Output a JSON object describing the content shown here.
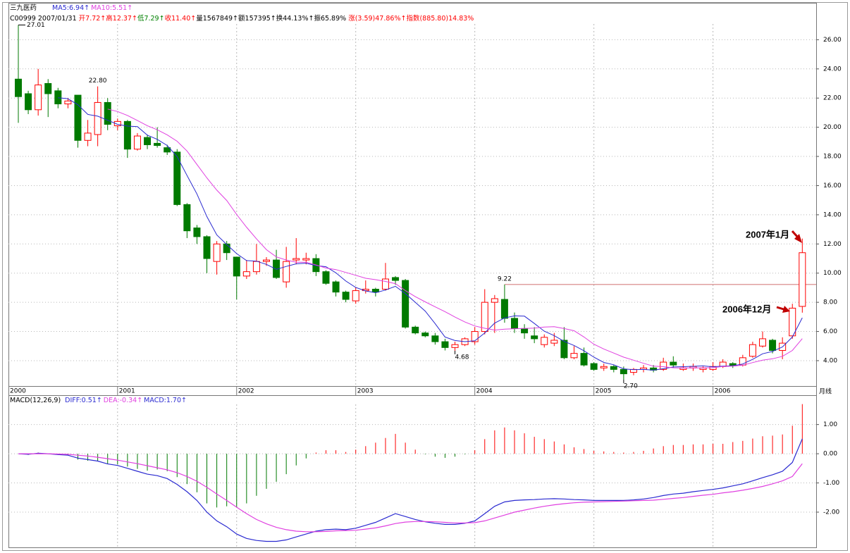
{
  "chart_data": [
    {
      "type": "candlestick",
      "title": "三九医药",
      "info": [
        {
          "text": "C00999 2007/01/31 ",
          "color": "#000000"
        },
        {
          "text": "开7.72↑",
          "color": "#ff0000"
        },
        {
          "text": "高12.37↑",
          "color": "#ff0000"
        },
        {
          "text": "低7.29↑",
          "color": "#008000"
        },
        {
          "text": "收11.40↑",
          "color": "#ff0000"
        },
        {
          "text": "量1567849↑",
          "color": "#000000"
        },
        {
          "text": "额157395↑",
          "color": "#000000"
        },
        {
          "text": "换44.13%↑",
          "color": "#000000"
        },
        {
          "text": "振65.89% ",
          "color": "#000000"
        },
        {
          "text": "涨(3.59)47.86%↑",
          "color": "#ff0000"
        },
        {
          "text": "指数(885.80)14.83%",
          "color": "#ff0000"
        }
      ],
      "categories": [
        "2000",
        null,
        null,
        null,
        null,
        null,
        null,
        null,
        null,
        null,
        "2001",
        null,
        null,
        null,
        null,
        null,
        null,
        null,
        null,
        null,
        null,
        null,
        "2002",
        null,
        null,
        null,
        null,
        null,
        null,
        null,
        null,
        null,
        null,
        null,
        "2003",
        null,
        null,
        null,
        null,
        null,
        null,
        null,
        null,
        null,
        null,
        null,
        "2004",
        null,
        null,
        null,
        null,
        null,
        null,
        null,
        null,
        null,
        null,
        null,
        "2005",
        null,
        null,
        null,
        null,
        null,
        null,
        null,
        null,
        null,
        null,
        null,
        "2006",
        null,
        null,
        null,
        null,
        null,
        null,
        null,
        null,
        null
      ],
      "open": [
        23.3,
        22.3,
        21.2,
        23.0,
        22.5,
        21.6,
        22.2,
        19.1,
        19.5,
        21.7,
        20.1,
        20.4,
        18.5,
        19.3,
        18.9,
        18.6,
        18.3,
        14.7,
        13.1,
        12.5,
        10.8,
        12.0,
        11.1,
        9.8,
        10.1,
        10.8,
        10.9,
        9.4,
        10.9,
        10.9,
        11.0,
        10.1,
        9.4,
        8.7,
        8.1,
        8.8,
        8.9,
        8.9,
        9.7,
        9.5,
        6.3,
        5.9,
        5.7,
        5.3,
        4.9,
        5.1,
        5.3,
        6.0,
        8.0,
        8.2,
        6.9,
        6.2,
        5.7,
        5.1,
        5.2,
        5.4,
        4.2,
        4.5,
        3.8,
        3.5,
        3.6,
        3.4,
        3.2,
        3.4,
        3.5,
        3.4,
        3.9,
        3.4,
        3.5,
        3.4,
        3.4,
        3.6,
        3.8,
        3.7,
        4.3,
        5.0,
        5.4,
        4.7,
        5.7,
        7.72
      ],
      "high": [
        27.01,
        22.5,
        24.0,
        23.3,
        22.7,
        22.0,
        22.2,
        20.5,
        22.8,
        22.0,
        20.6,
        20.5,
        19.6,
        19.5,
        20.0,
        18.8,
        18.5,
        14.8,
        13.3,
        12.6,
        12.2,
        12.2,
        11.1,
        10.9,
        12.0,
        11.1,
        11.6,
        11.8,
        12.4,
        11.4,
        11.3,
        10.2,
        9.5,
        8.8,
        9.0,
        9.5,
        9.0,
        10.7,
        9.8,
        9.6,
        6.4,
        6.0,
        5.9,
        5.5,
        5.3,
        5.6,
        6.3,
        8.9,
        8.5,
        9.22,
        7.3,
        6.5,
        6.3,
        5.8,
        5.9,
        6.3,
        5.0,
        4.9,
        3.9,
        3.8,
        3.7,
        3.6,
        3.5,
        3.7,
        3.7,
        4.2,
        4.3,
        3.8,
        3.8,
        3.6,
        3.9,
        4.1,
        3.9,
        4.4,
        5.3,
        6.0,
        5.5,
        5.6,
        7.9,
        12.37
      ],
      "low": [
        20.3,
        20.9,
        20.8,
        20.7,
        21.3,
        21.3,
        18.6,
        18.7,
        18.7,
        19.8,
        19.8,
        17.9,
        18.4,
        18.5,
        18.6,
        18.1,
        14.6,
        12.4,
        12.0,
        10.0,
        9.9,
        10.9,
        8.2,
        9.6,
        9.9,
        10.5,
        9.6,
        9.0,
        10.6,
        10.6,
        9.8,
        9.2,
        8.4,
        8.0,
        7.9,
        8.6,
        8.4,
        8.8,
        9.2,
        6.2,
        5.8,
        5.6,
        5.1,
        4.7,
        4.68,
        5.0,
        5.1,
        5.8,
        5.9,
        6.6,
        5.9,
        5.5,
        5.2,
        4.9,
        5.0,
        4.1,
        4.1,
        3.6,
        3.3,
        3.3,
        3.2,
        2.7,
        3.0,
        3.2,
        3.2,
        3.3,
        3.5,
        3.3,
        3.3,
        3.2,
        3.3,
        3.5,
        3.5,
        3.6,
        4.2,
        4.9,
        4.5,
        4.1,
        5.5,
        7.29
      ],
      "close": [
        22.1,
        21.2,
        22.9,
        22.3,
        21.6,
        21.8,
        19.1,
        19.6,
        21.7,
        20.2,
        20.4,
        18.5,
        19.4,
        18.8,
        18.75,
        18.3,
        14.7,
        12.9,
        12.5,
        11.0,
        12.0,
        11.4,
        9.8,
        10.1,
        10.8,
        10.9,
        9.7,
        10.8,
        11.0,
        11.0,
        10.1,
        9.3,
        8.7,
        8.2,
        8.8,
        8.9,
        8.7,
        9.6,
        9.5,
        6.3,
        5.9,
        5.7,
        5.3,
        4.9,
        5.1,
        5.5,
        6.0,
        8.0,
        8.25,
        6.9,
        6.2,
        5.9,
        5.5,
        5.6,
        5.4,
        4.2,
        4.5,
        3.7,
        3.4,
        3.6,
        3.4,
        3.1,
        3.4,
        3.5,
        3.35,
        3.9,
        3.7,
        3.5,
        3.6,
        3.5,
        3.6,
        3.9,
        3.65,
        4.2,
        5.1,
        5.5,
        4.7,
        5.2,
        7.6,
        11.4
      ],
      "high_labels": [
        "27.01",
        null,
        null,
        null,
        null,
        null,
        null,
        null,
        "22.80",
        null,
        null,
        null,
        null,
        null,
        null,
        null,
        null,
        null,
        null,
        null,
        null,
        null,
        null,
        null,
        null,
        null,
        null,
        null,
        null,
        null,
        null,
        null,
        null,
        null,
        null,
        null,
        null,
        null,
        null,
        null,
        null,
        null,
        null,
        null,
        null,
        null,
        null,
        null,
        null,
        "9.22",
        null,
        null,
        null,
        null,
        null,
        null,
        null,
        null,
        null,
        null,
        null,
        null,
        null,
        null,
        null,
        null,
        null,
        null,
        null,
        null,
        null,
        null,
        null,
        null,
        null,
        null,
        null,
        null,
        null,
        null
      ],
      "low_labels": [
        null,
        null,
        null,
        null,
        null,
        null,
        null,
        null,
        null,
        null,
        null,
        null,
        null,
        null,
        null,
        null,
        null,
        null,
        null,
        null,
        null,
        null,
        null,
        null,
        null,
        null,
        null,
        null,
        null,
        null,
        null,
        null,
        null,
        null,
        null,
        null,
        null,
        null,
        null,
        null,
        null,
        null,
        null,
        null,
        "4.68",
        null,
        null,
        null,
        null,
        null,
        null,
        null,
        null,
        null,
        null,
        null,
        null,
        null,
        null,
        null,
        null,
        "2.70",
        null,
        null,
        null,
        null,
        null,
        null,
        null,
        null,
        null,
        null,
        null,
        null,
        null,
        null,
        null,
        null,
        null,
        null
      ],
      "up_color": "#ff0000",
      "down_color": "#007a00",
      "series": [
        {
          "name": "MA5:6.94↑",
          "color": "#2a2ad0",
          "values": [
            null,
            null,
            null,
            null,
            22.02,
            21.96,
            21.54,
            20.88,
            20.76,
            20.48,
            20.2,
            20.08,
            20.04,
            19.46,
            19.17,
            18.75,
            17.99,
            16.69,
            15.43,
            13.88,
            12.62,
            11.96,
            11.34,
            10.86,
            10.82,
            10.6,
            10.26,
            10.46,
            10.64,
            10.68,
            10.52,
            10.44,
            10.02,
            9.46,
            9.02,
            8.78,
            8.66,
            8.84,
            9.1,
            8.6,
            8.0,
            7.4,
            6.54,
            5.62,
            5.38,
            5.3,
            5.36,
            5.9,
            6.57,
            6.93,
            7.07,
            7.05,
            6.55,
            6.02,
            5.72,
            5.32,
            5.04,
            4.68,
            4.24,
            3.88,
            3.72,
            3.44,
            3.38,
            3.4,
            3.35,
            3.45,
            3.57,
            3.59,
            3.61,
            3.64,
            3.58,
            3.62,
            3.65,
            3.77,
            4.09,
            4.47,
            4.63,
            4.94,
            5.62,
            6.94
          ]
        },
        {
          "name": "MA10:5.51↑",
          "color": "#e040e0",
          "values": [
            null,
            null,
            null,
            null,
            null,
            null,
            null,
            null,
            null,
            21.25,
            21.08,
            20.81,
            20.46,
            20.11,
            19.83,
            19.48,
            19.04,
            18.37,
            17.45,
            16.53,
            15.69,
            14.98,
            14.02,
            13.15,
            12.35,
            11.61,
            11.11,
            10.9,
            10.75,
            10.75,
            10.56,
            10.35,
            10.24,
            10.05,
            9.85,
            9.65,
            9.55,
            9.43,
            9.28,
            8.81,
            8.39,
            8.03,
            7.69,
            7.36,
            6.99,
            6.65,
            6.38,
            6.22,
            6.1,
            6.16,
            6.19,
            6.21,
            6.23,
            6.3,
            6.33,
            6.2,
            6.05,
            5.62,
            5.13,
            4.8,
            4.52,
            4.24,
            4.03,
            3.82,
            3.62,
            3.59,
            3.51,
            3.49,
            3.51,
            3.5,
            3.52,
            3.6,
            3.62,
            3.69,
            3.87,
            4.03,
            4.13,
            4.3,
            4.7,
            5.51
          ]
        }
      ],
      "annotations": [
        "2007年1月",
        "2006年12月"
      ],
      "annotation_color": "#c00000",
      "period_label": "月线",
      "ylim": [
        2.26,
        28.53
      ],
      "yticks": [
        {
          "value": 4,
          "label": "4.00"
        },
        {
          "value": 6,
          "label": "6.00"
        },
        {
          "value": 8,
          "label": "8.00"
        },
        {
          "value": 10,
          "label": "10.00"
        },
        {
          "value": 12,
          "label": "12.00"
        },
        {
          "value": 14,
          "label": "14.00"
        },
        {
          "value": 16,
          "label": "16.00"
        },
        {
          "value": 18,
          "label": "18.00"
        },
        {
          "value": 20,
          "label": "20.00"
        },
        {
          "value": 22,
          "label": "22.00"
        },
        {
          "value": 24,
          "label": "24.00"
        },
        {
          "value": 26,
          "label": "26.00"
        }
      ],
      "grid": true
    },
    {
      "type": "macd",
      "title": "MACD(12,26,9)",
      "series": [
        {
          "name": "DIFF:0.51↑",
          "color": "#2a2ad0",
          "values": [
            0,
            -0.02,
            0.02,
            0,
            -0.03,
            -0.05,
            -0.15,
            -0.2,
            -0.25,
            -0.35,
            -0.4,
            -0.5,
            -0.6,
            -0.7,
            -0.75,
            -0.85,
            -1.05,
            -1.3,
            -1.6,
            -2.0,
            -2.3,
            -2.5,
            -2.75,
            -2.9,
            -2.97,
            -3.0,
            -3.0,
            -2.95,
            -2.85,
            -2.75,
            -2.65,
            -2.6,
            -2.58,
            -2.6,
            -2.55,
            -2.45,
            -2.35,
            -2.2,
            -2.05,
            -2.15,
            -2.25,
            -2.33,
            -2.38,
            -2.42,
            -2.42,
            -2.38,
            -2.3,
            -2.05,
            -1.8,
            -1.65,
            -1.6,
            -1.58,
            -1.57,
            -1.55,
            -1.54,
            -1.55,
            -1.57,
            -1.58,
            -1.6,
            -1.6,
            -1.6,
            -1.6,
            -1.58,
            -1.55,
            -1.5,
            -1.43,
            -1.38,
            -1.35,
            -1.3,
            -1.26,
            -1.22,
            -1.17,
            -1.1,
            -1.03,
            -0.93,
            -0.82,
            -0.72,
            -0.6,
            -0.3,
            0.51
          ]
        },
        {
          "name": "DEA:-0.34↑",
          "color": "#e040e0",
          "values": [
            0,
            0,
            0,
            0,
            -0.01,
            -0.02,
            -0.05,
            -0.08,
            -0.12,
            -0.17,
            -0.22,
            -0.28,
            -0.34,
            -0.41,
            -0.48,
            -0.55,
            -0.65,
            -0.78,
            -0.94,
            -1.15,
            -1.38,
            -1.6,
            -1.83,
            -2.05,
            -2.25,
            -2.4,
            -2.52,
            -2.6,
            -2.65,
            -2.67,
            -2.67,
            -2.66,
            -2.64,
            -2.63,
            -2.62,
            -2.58,
            -2.54,
            -2.47,
            -2.39,
            -2.34,
            -2.32,
            -2.32,
            -2.33,
            -2.35,
            -2.37,
            -2.37,
            -2.36,
            -2.3,
            -2.2,
            -2.1,
            -2.0,
            -1.93,
            -1.86,
            -1.8,
            -1.75,
            -1.71,
            -1.68,
            -1.66,
            -1.65,
            -1.64,
            -1.63,
            -1.62,
            -1.61,
            -1.6,
            -1.59,
            -1.56,
            -1.53,
            -1.5,
            -1.46,
            -1.42,
            -1.39,
            -1.34,
            -1.3,
            -1.25,
            -1.19,
            -1.12,
            -1.03,
            -0.93,
            -0.78,
            -0.34
          ]
        }
      ],
      "bars": {
        "name": "MACD:1.70↑",
        "name_color": "#2a2ad0",
        "up_color": "#ff0000",
        "down_color": "#007a00",
        "values": [
          0,
          -0.04,
          0.04,
          0,
          -0.04,
          -0.06,
          -0.2,
          -0.24,
          -0.26,
          -0.36,
          -0.36,
          -0.44,
          -0.52,
          -0.58,
          -0.54,
          -0.6,
          -0.8,
          -1.04,
          -1.32,
          -1.7,
          -1.84,
          -1.8,
          -1.84,
          -1.7,
          -1.44,
          -1.2,
          -0.96,
          -0.7,
          -0.4,
          -0.16,
          0.04,
          0.12,
          0.12,
          0.06,
          0.14,
          0.26,
          0.38,
          0.54,
          0.68,
          0.38,
          0.14,
          -0.02,
          -0.1,
          -0.14,
          -0.1,
          -0.02,
          0.12,
          0.5,
          0.8,
          0.9,
          0.8,
          0.7,
          0.58,
          0.5,
          0.42,
          0.32,
          0.22,
          0.16,
          0.1,
          0.08,
          0.06,
          0.04,
          0.06,
          0.1,
          0.18,
          0.26,
          0.3,
          0.3,
          0.32,
          0.32,
          0.34,
          0.34,
          0.4,
          0.44,
          0.52,
          0.6,
          0.62,
          0.66,
          0.96,
          1.7
        ]
      },
      "ylim": [
        -3.23,
        1.98
      ],
      "yticks": [
        {
          "value": 1,
          "label": "1.00"
        },
        {
          "value": 0,
          "label": "0.00"
        },
        {
          "value": -1,
          "label": "-1.00"
        },
        {
          "value": -2,
          "label": "-2.00"
        }
      ],
      "grid": true
    }
  ]
}
